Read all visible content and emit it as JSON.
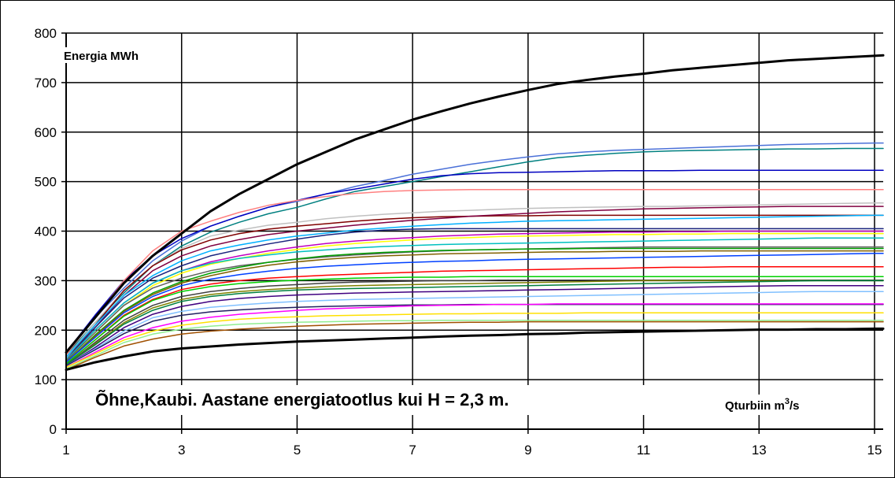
{
  "chart_data": {
    "type": "line",
    "title": "Õhne,Kaubi. Aastane energiatootlus kui H = 2,3 m.",
    "ylabel": "Energia MWh",
    "xlabel": "Qturbiin m³/s",
    "xlabel_main": "Qturbiin m",
    "xlabel_sup": "3",
    "xlabel_tail": "/s",
    "xlim": [
      1,
      15.15
    ],
    "ylim": [
      0,
      800
    ],
    "x_ticks": [
      "1",
      "3",
      "5",
      "7",
      "9",
      "11",
      "13",
      "15"
    ],
    "y_ticks": [
      "0",
      "100",
      "200",
      "300",
      "400",
      "500",
      "600",
      "700",
      "800"
    ],
    "grid": true,
    "x": [
      1,
      1.5,
      2,
      2.5,
      3,
      3.5,
      4,
      4.5,
      5,
      5.5,
      6,
      6.5,
      7,
      7.5,
      8,
      8.5,
      9,
      9.5,
      10,
      10.5,
      11,
      11.5,
      12,
      12.5,
      13,
      13.5,
      14,
      14.5,
      15,
      15.15
    ],
    "series": [
      {
        "color": "#000000",
        "width": 3,
        "values": [
          155,
          225,
          295,
          350,
          395,
          440,
          475,
          505,
          535,
          560,
          585,
          605,
          625,
          642,
          658,
          672,
          685,
          697,
          705,
          712,
          718,
          725,
          730,
          735,
          740,
          745,
          748,
          751,
          754,
          755
        ]
      },
      {
        "color": "#000000",
        "width": 3,
        "values": [
          120,
          135,
          147,
          157,
          163,
          167,
          171,
          174,
          177,
          179,
          181,
          183,
          185,
          187,
          189,
          190,
          192,
          193,
          195,
          196,
          197,
          198,
          199,
          200,
          201,
          201,
          202,
          202,
          203,
          203
        ]
      },
      {
        "color": "#4a70d8",
        "width": 1.5,
        "values": [
          155,
          225,
          285,
          340,
          380,
          410,
          430,
          448,
          460,
          475,
          490,
          502,
          515,
          525,
          535,
          543,
          550,
          556,
          560,
          563,
          565,
          567,
          569,
          571,
          573,
          575,
          576,
          577,
          578,
          578
        ]
      },
      {
        "color": "#008080",
        "width": 1.5,
        "values": [
          150,
          215,
          275,
          330,
          370,
          398,
          418,
          435,
          448,
          465,
          480,
          490,
          500,
          510,
          520,
          530,
          540,
          548,
          553,
          557,
          560,
          562,
          563,
          564,
          565,
          566,
          566,
          567,
          567,
          567
        ]
      },
      {
        "color": "#0000c0",
        "width": 1.5,
        "values": [
          155,
          230,
          300,
          350,
          385,
          410,
          430,
          448,
          462,
          475,
          485,
          495,
          505,
          512,
          516,
          518,
          519,
          520,
          521,
          522,
          522,
          522,
          523,
          523,
          523,
          523,
          523,
          523,
          523,
          523
        ]
      },
      {
        "color": "#ff8080",
        "width": 1.5,
        "values": [
          150,
          225,
          300,
          360,
          400,
          420,
          438,
          452,
          462,
          470,
          476,
          480,
          482,
          483,
          484,
          484,
          484,
          484,
          484,
          484,
          484,
          484,
          484,
          484,
          484,
          484,
          484,
          484,
          484,
          484
        ]
      },
      {
        "color": "#c0c0c0",
        "width": 1.5,
        "values": [
          145,
          215,
          280,
          330,
          365,
          390,
          402,
          412,
          418,
          425,
          430,
          434,
          437,
          440,
          442,
          444,
          446,
          447,
          448,
          449,
          450,
          450,
          451,
          452,
          453,
          454,
          455,
          456,
          457,
          457
        ]
      },
      {
        "color": "#800000",
        "width": 1.5,
        "values": [
          140,
          210,
          280,
          330,
          362,
          382,
          395,
          404,
          410,
          415,
          420,
          424,
          427,
          429,
          430,
          431,
          431,
          432,
          432,
          432,
          432,
          432,
          432,
          432,
          432,
          432,
          432,
          432,
          432,
          432
        ]
      },
      {
        "color": "#800040",
        "width": 1.5,
        "values": [
          140,
          205,
          270,
          320,
          350,
          370,
          383,
          393,
          400,
          406,
          412,
          417,
          422,
          426,
          430,
          433,
          436,
          439,
          441,
          443,
          445,
          446,
          447,
          448,
          449,
          450,
          450,
          450,
          450,
          450
        ]
      },
      {
        "color": "#00b0ff",
        "width": 1.5,
        "values": [
          145,
          210,
          270,
          310,
          340,
          360,
          372,
          382,
          390,
          396,
          402,
          406,
          410,
          413,
          416,
          418,
          420,
          421,
          422,
          423,
          424,
          425,
          426,
          427,
          428,
          429,
          430,
          431,
          432,
          432
        ]
      },
      {
        "color": "#1a237e",
        "width": 1.5,
        "values": [
          140,
          205,
          265,
          305,
          330,
          350,
          363,
          374,
          384,
          392,
          398,
          402,
          404,
          405,
          405,
          405,
          405,
          405,
          405,
          405,
          405,
          405,
          405,
          405,
          405,
          405,
          405,
          405,
          405,
          405
        ]
      },
      {
        "color": "#c000c0",
        "width": 1.5,
        "values": [
          140,
          200,
          255,
          295,
          320,
          338,
          350,
          360,
          368,
          375,
          380,
          384,
          387,
          390,
          392,
          394,
          395,
          396,
          397,
          398,
          398,
          399,
          399,
          400,
          400,
          400,
          400,
          400,
          400,
          400
        ]
      },
      {
        "color": "#ffff00",
        "width": 1.5,
        "values": [
          138,
          195,
          250,
          290,
          315,
          333,
          345,
          355,
          363,
          370,
          375,
          379,
          382,
          385,
          387,
          389,
          390,
          391,
          392,
          393,
          393,
          394,
          394,
          395,
          395,
          395,
          395,
          395,
          395,
          395
        ]
      },
      {
        "color": "#00c0c0",
        "width": 1.5,
        "values": [
          140,
          200,
          255,
          295,
          320,
          335,
          345,
          352,
          358,
          362,
          366,
          369,
          371,
          373,
          374,
          375,
          376,
          377,
          378,
          379,
          380,
          381,
          382,
          383,
          384,
          385,
          386,
          386,
          386,
          386
        ]
      },
      {
        "color": "#606060",
        "width": 1.5,
        "values": [
          138,
          195,
          250,
          285,
          305,
          320,
          330,
          337,
          343,
          348,
          352,
          355,
          358,
          360,
          362,
          363,
          364,
          365,
          366,
          367,
          368,
          368,
          368,
          368,
          368,
          368,
          368,
          368,
          368,
          368
        ]
      },
      {
        "color": "#00a000",
        "width": 1.5,
        "values": [
          135,
          190,
          240,
          275,
          298,
          315,
          327,
          337,
          344,
          350,
          354,
          357,
          359,
          361,
          362,
          363,
          364,
          364,
          365,
          365,
          365,
          365,
          365,
          365,
          365,
          365,
          365,
          365,
          365,
          365
        ]
      },
      {
        "color": "#806000",
        "width": 1.5,
        "values": [
          135,
          188,
          238,
          272,
          295,
          310,
          322,
          331,
          338,
          343,
          347,
          350,
          352,
          354,
          355,
          356,
          357,
          358,
          358,
          359,
          359,
          359,
          360,
          360,
          360,
          360,
          360,
          360,
          360,
          360
        ]
      },
      {
        "color": "#0040ff",
        "width": 1.5,
        "values": [
          135,
          185,
          235,
          268,
          290,
          303,
          312,
          319,
          325,
          329,
          332,
          335,
          337,
          339,
          340,
          342,
          343,
          344,
          345,
          346,
          347,
          348,
          349,
          350,
          351,
          352,
          353,
          354,
          355,
          355
        ]
      },
      {
        "color": "#ff0000",
        "width": 1.5,
        "values": [
          132,
          180,
          230,
          262,
          282,
          293,
          300,
          305,
          308,
          311,
          313,
          315,
          317,
          319,
          320,
          321,
          322,
          323,
          324,
          325,
          326,
          327,
          327,
          328,
          328,
          328,
          328,
          328,
          328,
          328
        ]
      },
      {
        "color": "#00d000",
        "width": 1.5,
        "values": [
          132,
          180,
          228,
          260,
          278,
          288,
          294,
          298,
          301,
          303,
          305,
          306,
          307,
          307,
          308,
          308,
          308,
          308,
          308,
          308,
          308,
          308,
          308,
          308,
          308,
          308,
          308,
          308,
          308,
          308
        ]
      },
      {
        "color": "#404040",
        "width": 1.5,
        "values": [
          130,
          175,
          220,
          250,
          268,
          278,
          284,
          289,
          292,
          295,
          297,
          298,
          299,
          300,
          300,
          301,
          301,
          301,
          301,
          301,
          301,
          301,
          301,
          301,
          301,
          301,
          301,
          301,
          301,
          301
        ]
      },
      {
        "color": "#808000",
        "width": 1.5,
        "values": [
          130,
          172,
          215,
          245,
          262,
          272,
          278,
          282,
          285,
          288,
          290,
          291,
          292,
          293,
          294,
          295,
          296,
          297,
          298,
          299,
          300,
          300,
          300,
          300,
          300,
          300,
          300,
          300,
          300,
          300
        ]
      },
      {
        "color": "#008040",
        "width": 1.5,
        "values": [
          130,
          170,
          212,
          240,
          258,
          268,
          274,
          278,
          281,
          283,
          284,
          285,
          286,
          287,
          288,
          289,
          290,
          291,
          292,
          293,
          294,
          295,
          296,
          297,
          298,
          299,
          300,
          300,
          300,
          300
        ]
      },
      {
        "color": "#400080",
        "width": 1.5,
        "values": [
          128,
          165,
          205,
          232,
          248,
          258,
          264,
          268,
          271,
          273,
          275,
          276,
          277,
          278,
          279,
          280,
          281,
          282,
          283,
          284,
          285,
          286,
          287,
          288,
          289,
          290,
          290,
          290,
          290,
          290
        ]
      },
      {
        "color": "#80c0ff",
        "width": 1.5,
        "values": [
          128,
          162,
          198,
          225,
          238,
          246,
          251,
          255,
          258,
          260,
          262,
          263,
          264,
          265,
          266,
          267,
          268,
          269,
          270,
          271,
          272,
          273,
          274,
          275,
          276,
          277,
          278,
          278,
          278,
          278
        ]
      },
      {
        "color": "#202060",
        "width": 1.5,
        "values": [
          128,
          160,
          193,
          218,
          230,
          237,
          241,
          244,
          246,
          248,
          249,
          250,
          251,
          251,
          252,
          252,
          252,
          252,
          252,
          252,
          252,
          252,
          252,
          252,
          252,
          252,
          252,
          252,
          252,
          252
        ]
      },
      {
        "color": "#ff00ff",
        "width": 1.5,
        "values": [
          125,
          155,
          185,
          205,
          218,
          226,
          232,
          236,
          240,
          243,
          245,
          247,
          249,
          250,
          251,
          252,
          252,
          253,
          253,
          253,
          253,
          253,
          253,
          253,
          253,
          253,
          253,
          253,
          253,
          253
        ]
      },
      {
        "color": "#ffe000",
        "width": 1.5,
        "values": [
          125,
          152,
          180,
          198,
          210,
          217,
          222,
          225,
          227,
          229,
          230,
          231,
          232,
          233,
          233,
          234,
          234,
          234,
          235,
          235,
          235,
          235,
          235,
          235,
          235,
          235,
          235,
          235,
          235,
          235
        ]
      },
      {
        "color": "#90ee90",
        "width": 1.5,
        "values": [
          122,
          148,
          175,
          192,
          202,
          208,
          212,
          214,
          216,
          217,
          218,
          219,
          219,
          220,
          220,
          220,
          220,
          220,
          220,
          220,
          220,
          220,
          220,
          220,
          220,
          220,
          220,
          220,
          220,
          220
        ]
      },
      {
        "color": "#a05000",
        "width": 1.5,
        "values": [
          120,
          145,
          168,
          182,
          192,
          198,
          202,
          205,
          208,
          210,
          212,
          213,
          214,
          215,
          216,
          216,
          217,
          217,
          217,
          217,
          217,
          217,
          217,
          217,
          217,
          217,
          217,
          217,
          217,
          217
        ]
      }
    ]
  }
}
